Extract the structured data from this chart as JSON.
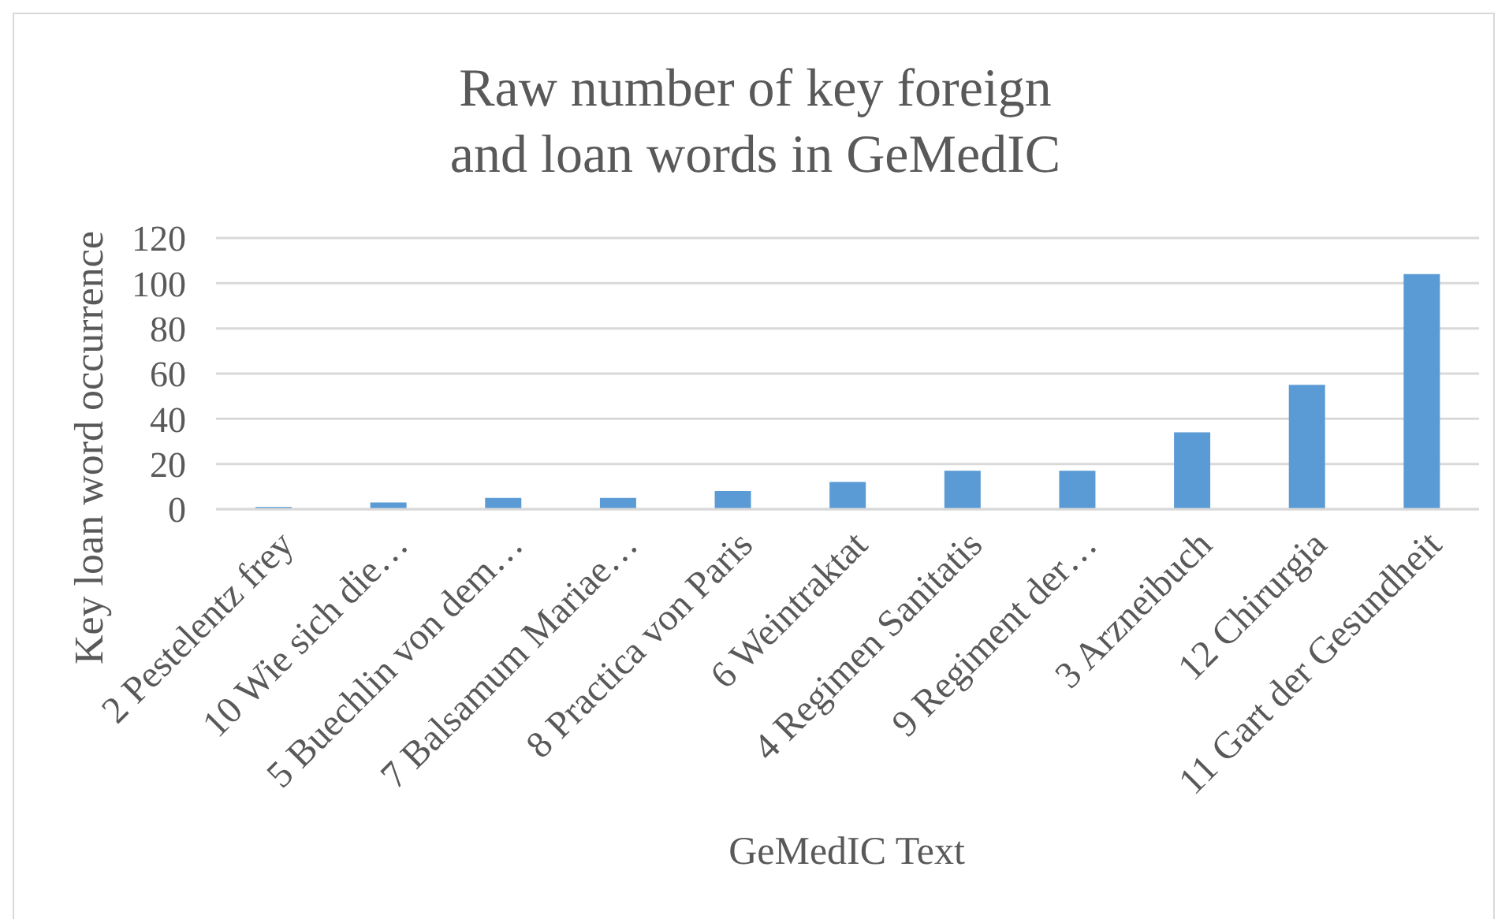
{
  "chart_data": {
    "type": "bar",
    "title": "Raw number of key foreign and loan words in GeMedIC",
    "xlabel": "GeMedIC Text",
    "ylabel": "Key loan word occurrence",
    "categories": [
      "2 Pestelentz frey",
      "10 Wie sich die…",
      "5 Buechlin von dem…",
      "7 Balsamum Mariae…",
      "8 Practica von Paris",
      "6 Weintraktat",
      "4 Regimen Sanitatis",
      "9 Regiment der…",
      "3 Arzneibuch",
      "12 Chirurgia",
      "11 Gart der Gesundheit"
    ],
    "values": [
      1,
      3,
      5,
      5,
      8,
      12,
      17,
      17,
      34,
      55,
      104
    ],
    "color": "#5b9bd5",
    "ylim": [
      0,
      120
    ],
    "yticks": [
      0,
      20,
      40,
      60,
      80,
      100,
      120
    ],
    "grid": "y"
  }
}
